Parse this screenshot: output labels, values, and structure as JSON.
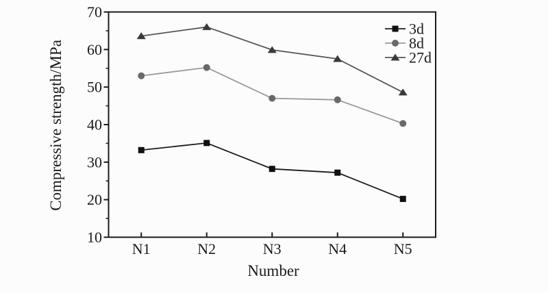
{
  "chart_data": {
    "type": "line",
    "title": "",
    "xlabel": "Number",
    "ylabel": "Compressive strength/MPa",
    "categories": [
      "N1",
      "N2",
      "N3",
      "N4",
      "N5"
    ],
    "series": [
      {
        "name": "3d",
        "values": [
          33.2,
          35.1,
          28.2,
          27.2,
          20.2
        ],
        "line_color": "#1a1a1a",
        "marker": "square",
        "marker_color": "#111111"
      },
      {
        "name": "8d",
        "values": [
          53.0,
          55.2,
          47.0,
          46.6,
          40.3
        ],
        "line_color": "#999999",
        "marker": "circle",
        "marker_color": "#696969"
      },
      {
        "name": "27d",
        "values": [
          63.6,
          66.0,
          59.9,
          57.5,
          48.6
        ],
        "line_color": "#555555",
        "marker": "triangle",
        "marker_color": "#3a3a3a"
      }
    ],
    "ylim": [
      10,
      70
    ],
    "y_major_ticks": [
      10,
      20,
      30,
      40,
      50,
      60,
      70
    ],
    "y_minor_step": 5,
    "grid": false,
    "legend_position": "top-right-inside",
    "axis_color": "#1a1a1a",
    "background_color": "#fcfcfc"
  }
}
